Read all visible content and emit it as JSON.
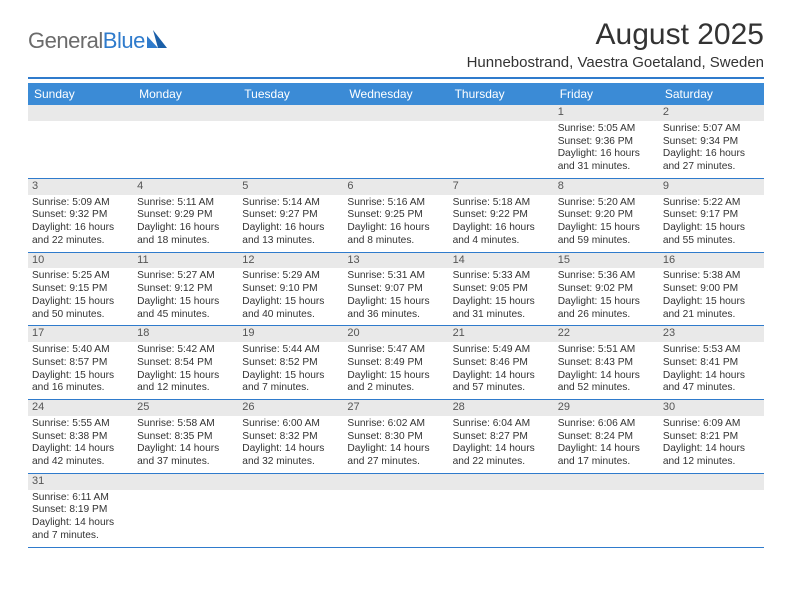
{
  "brand": {
    "part1": "General",
    "part2": "Blue"
  },
  "title": "August 2025",
  "location": "Hunnebostrand, Vaestra Goetaland, Sweden",
  "colors": {
    "header_bg": "#3b8bd6",
    "accent": "#2f7bcc",
    "daynum_bg": "#e9e9e9",
    "text": "#333333"
  },
  "day_headers": [
    "Sunday",
    "Monday",
    "Tuesday",
    "Wednesday",
    "Thursday",
    "Friday",
    "Saturday"
  ],
  "weeks": [
    [
      null,
      null,
      null,
      null,
      null,
      {
        "n": "1",
        "sr": "5:05 AM",
        "ss": "9:36 PM",
        "dl1": "16 hours",
        "dl2": "and 31 minutes."
      },
      {
        "n": "2",
        "sr": "5:07 AM",
        "ss": "9:34 PM",
        "dl1": "16 hours",
        "dl2": "and 27 minutes."
      }
    ],
    [
      {
        "n": "3",
        "sr": "5:09 AM",
        "ss": "9:32 PM",
        "dl1": "16 hours",
        "dl2": "and 22 minutes."
      },
      {
        "n": "4",
        "sr": "5:11 AM",
        "ss": "9:29 PM",
        "dl1": "16 hours",
        "dl2": "and 18 minutes."
      },
      {
        "n": "5",
        "sr": "5:14 AM",
        "ss": "9:27 PM",
        "dl1": "16 hours",
        "dl2": "and 13 minutes."
      },
      {
        "n": "6",
        "sr": "5:16 AM",
        "ss": "9:25 PM",
        "dl1": "16 hours",
        "dl2": "and 8 minutes."
      },
      {
        "n": "7",
        "sr": "5:18 AM",
        "ss": "9:22 PM",
        "dl1": "16 hours",
        "dl2": "and 4 minutes."
      },
      {
        "n": "8",
        "sr": "5:20 AM",
        "ss": "9:20 PM",
        "dl1": "15 hours",
        "dl2": "and 59 minutes."
      },
      {
        "n": "9",
        "sr": "5:22 AM",
        "ss": "9:17 PM",
        "dl1": "15 hours",
        "dl2": "and 55 minutes."
      }
    ],
    [
      {
        "n": "10",
        "sr": "5:25 AM",
        "ss": "9:15 PM",
        "dl1": "15 hours",
        "dl2": "and 50 minutes."
      },
      {
        "n": "11",
        "sr": "5:27 AM",
        "ss": "9:12 PM",
        "dl1": "15 hours",
        "dl2": "and 45 minutes."
      },
      {
        "n": "12",
        "sr": "5:29 AM",
        "ss": "9:10 PM",
        "dl1": "15 hours",
        "dl2": "and 40 minutes."
      },
      {
        "n": "13",
        "sr": "5:31 AM",
        "ss": "9:07 PM",
        "dl1": "15 hours",
        "dl2": "and 36 minutes."
      },
      {
        "n": "14",
        "sr": "5:33 AM",
        "ss": "9:05 PM",
        "dl1": "15 hours",
        "dl2": "and 31 minutes."
      },
      {
        "n": "15",
        "sr": "5:36 AM",
        "ss": "9:02 PM",
        "dl1": "15 hours",
        "dl2": "and 26 minutes."
      },
      {
        "n": "16",
        "sr": "5:38 AM",
        "ss": "9:00 PM",
        "dl1": "15 hours",
        "dl2": "and 21 minutes."
      }
    ],
    [
      {
        "n": "17",
        "sr": "5:40 AM",
        "ss": "8:57 PM",
        "dl1": "15 hours",
        "dl2": "and 16 minutes."
      },
      {
        "n": "18",
        "sr": "5:42 AM",
        "ss": "8:54 PM",
        "dl1": "15 hours",
        "dl2": "and 12 minutes."
      },
      {
        "n": "19",
        "sr": "5:44 AM",
        "ss": "8:52 PM",
        "dl1": "15 hours",
        "dl2": "and 7 minutes."
      },
      {
        "n": "20",
        "sr": "5:47 AM",
        "ss": "8:49 PM",
        "dl1": "15 hours",
        "dl2": "and 2 minutes."
      },
      {
        "n": "21",
        "sr": "5:49 AM",
        "ss": "8:46 PM",
        "dl1": "14 hours",
        "dl2": "and 57 minutes."
      },
      {
        "n": "22",
        "sr": "5:51 AM",
        "ss": "8:43 PM",
        "dl1": "14 hours",
        "dl2": "and 52 minutes."
      },
      {
        "n": "23",
        "sr": "5:53 AM",
        "ss": "8:41 PM",
        "dl1": "14 hours",
        "dl2": "and 47 minutes."
      }
    ],
    [
      {
        "n": "24",
        "sr": "5:55 AM",
        "ss": "8:38 PM",
        "dl1": "14 hours",
        "dl2": "and 42 minutes."
      },
      {
        "n": "25",
        "sr": "5:58 AM",
        "ss": "8:35 PM",
        "dl1": "14 hours",
        "dl2": "and 37 minutes."
      },
      {
        "n": "26",
        "sr": "6:00 AM",
        "ss": "8:32 PM",
        "dl1": "14 hours",
        "dl2": "and 32 minutes."
      },
      {
        "n": "27",
        "sr": "6:02 AM",
        "ss": "8:30 PM",
        "dl1": "14 hours",
        "dl2": "and 27 minutes."
      },
      {
        "n": "28",
        "sr": "6:04 AM",
        "ss": "8:27 PM",
        "dl1": "14 hours",
        "dl2": "and 22 minutes."
      },
      {
        "n": "29",
        "sr": "6:06 AM",
        "ss": "8:24 PM",
        "dl1": "14 hours",
        "dl2": "and 17 minutes."
      },
      {
        "n": "30",
        "sr": "6:09 AM",
        "ss": "8:21 PM",
        "dl1": "14 hours",
        "dl2": "and 12 minutes."
      }
    ],
    [
      {
        "n": "31",
        "sr": "6:11 AM",
        "ss": "8:19 PM",
        "dl1": "14 hours",
        "dl2": "and 7 minutes."
      },
      null,
      null,
      null,
      null,
      null,
      null
    ]
  ],
  "labels": {
    "sunrise": "Sunrise: ",
    "sunset": "Sunset: ",
    "daylight": "Daylight: "
  }
}
